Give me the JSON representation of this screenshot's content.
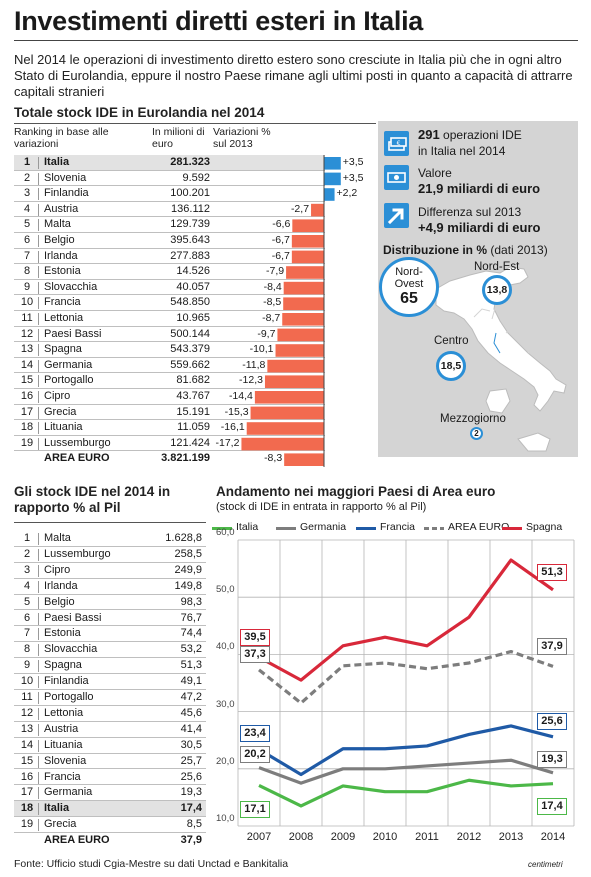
{
  "title": "Investimenti diretti esteri in Italia",
  "intro": "Nel 2014 le operazioni di investimento diretto estero sono cresciute in Italia più che in ogni altro Stato di Eurolandia, eppure il nostro Paese rimane agli ultimi posti in quanto a capacità di attrarre capitali stranieri",
  "colors": {
    "blue": "#2b8fd6",
    "red": "#f26a4f",
    "green": "#4cb848",
    "grey": "#7d7d7d",
    "navy": "#1f5aa6",
    "crimson": "#d8283a"
  },
  "chart_data": [
    {
      "type": "table",
      "title": "Totale stock IDE in Eurolandia nel 2014",
      "columns": [
        "Ranking in base alle variazioni",
        "In milioni di euro",
        "Variazioni % sul 2013"
      ],
      "rows": [
        {
          "rank": "1",
          "country": "Italia",
          "stock": "281.323",
          "change": 3.5,
          "label": "+3,5"
        },
        {
          "rank": "2",
          "country": "Slovenia",
          "stock": "9.592",
          "change": 3.5,
          "label": "+3,5"
        },
        {
          "rank": "3",
          "country": "Finlandia",
          "stock": "100.201",
          "change": 2.2,
          "label": "+2,2"
        },
        {
          "rank": "4",
          "country": "Austria",
          "stock": "136.112",
          "change": -2.7,
          "label": "-2,7"
        },
        {
          "rank": "5",
          "country": "Malta",
          "stock": "129.739",
          "change": -6.6,
          "label": "-6,6"
        },
        {
          "rank": "6",
          "country": "Belgio",
          "stock": "395.643",
          "change": -6.7,
          "label": "-6,7"
        },
        {
          "rank": "7",
          "country": "Irlanda",
          "stock": "277.883",
          "change": -6.7,
          "label": "-6,7"
        },
        {
          "rank": "8",
          "country": "Estonia",
          "stock": "14.526",
          "change": -7.9,
          "label": "-7,9"
        },
        {
          "rank": "9",
          "country": "Slovacchia",
          "stock": "40.057",
          "change": -8.4,
          "label": "-8,4"
        },
        {
          "rank": "10",
          "country": "Francia",
          "stock": "548.850",
          "change": -8.5,
          "label": "-8,5"
        },
        {
          "rank": "11",
          "country": "Lettonia",
          "stock": "10.965",
          "change": -8.7,
          "label": "-8,7"
        },
        {
          "rank": "12",
          "country": "Paesi Bassi",
          "stock": "500.144",
          "change": -9.7,
          "label": "-9,7"
        },
        {
          "rank": "13",
          "country": "Spagna",
          "stock": "543.379",
          "change": -10.1,
          "label": "-10,1"
        },
        {
          "rank": "14",
          "country": "Germania",
          "stock": "559.662",
          "change": -11.8,
          "label": "-11,8"
        },
        {
          "rank": "15",
          "country": "Portogallo",
          "stock": "81.682",
          "change": -12.3,
          "label": "-12,3"
        },
        {
          "rank": "16",
          "country": "Cipro",
          "stock": "43.767",
          "change": -14.4,
          "label": "-14,4"
        },
        {
          "rank": "17",
          "country": "Grecia",
          "stock": "15.191",
          "change": -15.3,
          "label": "-15,3"
        },
        {
          "rank": "18",
          "country": "Lituania",
          "stock": "11.059",
          "change": -16.1,
          "label": "-16,1"
        },
        {
          "rank": "19",
          "country": "Lussemburgo",
          "stock": "121.424",
          "change": -17.2,
          "label": "-17,2"
        }
      ],
      "total": {
        "country": "AREA EURO",
        "stock": "3.821.199",
        "change": -8.3,
        "label": "-8,3"
      }
    },
    {
      "type": "table",
      "title": "Gli stock IDE nel 2014 in rapporto % al Pil",
      "rows": [
        {
          "rank": "1",
          "country": "Malta",
          "value": "1.628,8"
        },
        {
          "rank": "2",
          "country": "Lussemburgo",
          "value": "258,5"
        },
        {
          "rank": "3",
          "country": "Cipro",
          "value": "249,9"
        },
        {
          "rank": "4",
          "country": "Irlanda",
          "value": "149,8"
        },
        {
          "rank": "5",
          "country": "Belgio",
          "value": "98,3"
        },
        {
          "rank": "6",
          "country": "Paesi Bassi",
          "value": "76,7"
        },
        {
          "rank": "7",
          "country": "Estonia",
          "value": "74,4"
        },
        {
          "rank": "8",
          "country": "Slovacchia",
          "value": "53,2"
        },
        {
          "rank": "9",
          "country": "Spagna",
          "value": "51,3"
        },
        {
          "rank": "10",
          "country": "Finlandia",
          "value": "49,1"
        },
        {
          "rank": "11",
          "country": "Portogallo",
          "value": "47,2"
        },
        {
          "rank": "12",
          "country": "Lettonia",
          "value": "45,6"
        },
        {
          "rank": "13",
          "country": "Austria",
          "value": "41,4"
        },
        {
          "rank": "14",
          "country": "Lituania",
          "value": "30,5"
        },
        {
          "rank": "15",
          "country": "Slovenia",
          "value": "25,7"
        },
        {
          "rank": "16",
          "country": "Francia",
          "value": "25,6"
        },
        {
          "rank": "17",
          "country": "Germania",
          "value": "19,3"
        },
        {
          "rank": "18",
          "country": "Italia",
          "value": "17,4"
        },
        {
          "rank": "19",
          "country": "Grecia",
          "value": "8,5"
        }
      ],
      "total": {
        "country": "AREA EURO",
        "value": "37,9"
      }
    },
    {
      "type": "line",
      "title": "Andamento nei maggiori Paesi di Area euro",
      "subtitle": "(stock di IDE in entrata in rapporto % al Pil)",
      "x": [
        "2007",
        "2008",
        "2009",
        "2010",
        "2011",
        "2012",
        "2013",
        "2014"
      ],
      "ylim": [
        10,
        60
      ],
      "yticks": [
        "10,0",
        "20,0",
        "30,0",
        "40,0",
        "50,0",
        "60,0"
      ],
      "grid": true,
      "legend": "top",
      "series": [
        {
          "name": "Italia",
          "color": "#4cb848",
          "dashed": false,
          "values": [
            17.1,
            13.5,
            17.0,
            16.0,
            16.0,
            18.0,
            17.0,
            17.4
          ],
          "first_label": "17,1",
          "last_label": "17,4"
        },
        {
          "name": "Germania",
          "color": "#7d7d7d",
          "dashed": false,
          "values": [
            20.2,
            17.5,
            20.0,
            20.0,
            20.5,
            21.0,
            21.5,
            19.3
          ],
          "first_label": "20,2",
          "last_label": "19,3"
        },
        {
          "name": "Francia",
          "color": "#1f5aa6",
          "dashed": false,
          "values": [
            23.4,
            19.0,
            23.5,
            23.5,
            24.0,
            26.0,
            27.5,
            25.6
          ],
          "first_label": "23,4",
          "last_label": "25,6"
        },
        {
          "name": "AREA EURO",
          "color": "#7d7d7d",
          "dashed": true,
          "values": [
            37.3,
            31.5,
            38.0,
            38.5,
            37.5,
            38.5,
            40.5,
            37.9
          ],
          "first_label": "37,3",
          "last_label": "37,9"
        },
        {
          "name": "Spagna",
          "color": "#d8283a",
          "dashed": false,
          "values": [
            39.5,
            35.5,
            41.5,
            43.0,
            41.5,
            46.5,
            56.5,
            51.3
          ],
          "first_label": "39,5",
          "last_label": "51,3"
        }
      ]
    }
  ],
  "panel": {
    "ops_value": "291",
    "ops_text": "operazioni IDE",
    "ops_text2": "in Italia nel 2014",
    "valore_label": "Valore",
    "valore_value": "21,9 miliardi di euro",
    "diff_label": "Differenza sul 2013",
    "diff_value": "+4,9 miliardi di euro",
    "distrib_title": "Distribuzione in %",
    "distrib_sub": "(dati 2013)",
    "regions": {
      "nordovest_l1": "Nord-",
      "nordovest_l2": "Ovest",
      "nordovest_val": "65",
      "nordest": "Nord-Est",
      "nordest_val": "13,8",
      "centro": "Centro",
      "centro_val": "18,5",
      "mezzogiorno": "Mezzogiorno",
      "mezzogiorno_val": "2"
    },
    "icons": [
      "euro-stack-icon",
      "euro-bills-icon",
      "arrow-up-right-icon"
    ]
  },
  "source": "Fonte: Ufficio studi Cgia-Mestre su dati Unctad e Bankitalia",
  "logo": "centimetri"
}
